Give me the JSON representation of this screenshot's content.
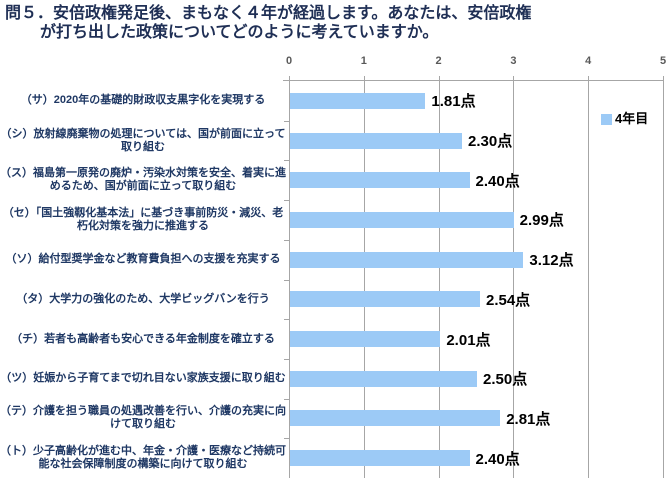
{
  "title": {
    "text": "問５．安倍政権発足後、まもなく４年が経過します。あなたは、安倍政権\nが打ち出した政策についてどのように考えていますか。"
  },
  "legend": {
    "label": "4年目"
  },
  "colors": {
    "bar": "#9CCAF6",
    "grid": "#A6A6A6",
    "axis_text": "#595959",
    "label_text": "#1F3864",
    "title_text": "#1F2F55",
    "value_text": "#000000"
  },
  "chart_data": {
    "type": "bar",
    "orientation": "horizontal",
    "title": "問５．安倍政権発足後、まもなく４年が経過します。あなたは、安倍政権が打ち出した政策についてどのように考えていますか。",
    "categories": [
      "（サ）2020年の基礎的財政収支黒字化を実現する",
      "（シ）放射線廃棄物の処理については、国が前面に立って取り組む",
      "（ス）福島第一原発の廃炉・汚染水対策を安全、着実に進めるため、国が前面に立って取り組む",
      "（セ）「国土強靱化基本法」に基づき事前防災・減災、老朽化対策を強力に推進する",
      "（ソ）給付型奨学金など教育費負担への支援を充実する",
      "（タ）大学力の強化のため、大学ビッグバンを行う",
      "（チ）若者も高齢者も安心できる年金制度を確立する",
      "（ツ）妊娠から子育てまで切れ目ない家族支援に取り組む",
      "（テ）介護を担う職員の処遇改善を行い、介護の充実に向けて取り組む",
      "（ト）少子高齢化が進む中、年金・介護・医療など持続可能な社会保障制度の構築に向けて取り組む"
    ],
    "series": [
      {
        "name": "4年目",
        "values": [
          1.81,
          2.3,
          2.4,
          2.99,
          3.12,
          2.54,
          2.01,
          2.5,
          2.81,
          2.4
        ]
      }
    ],
    "value_labels": [
      "1.81点",
      "2.30点",
      "2.40点",
      "2.99点",
      "3.12点",
      "2.54点",
      "2.01点",
      "2.50点",
      "2.81点",
      "2.40点"
    ],
    "x_ticks": [
      "0",
      "1",
      "2",
      "3",
      "4",
      "5"
    ],
    "xlim": [
      0,
      5
    ],
    "grid": true,
    "legend_position": "inside-top-right"
  }
}
